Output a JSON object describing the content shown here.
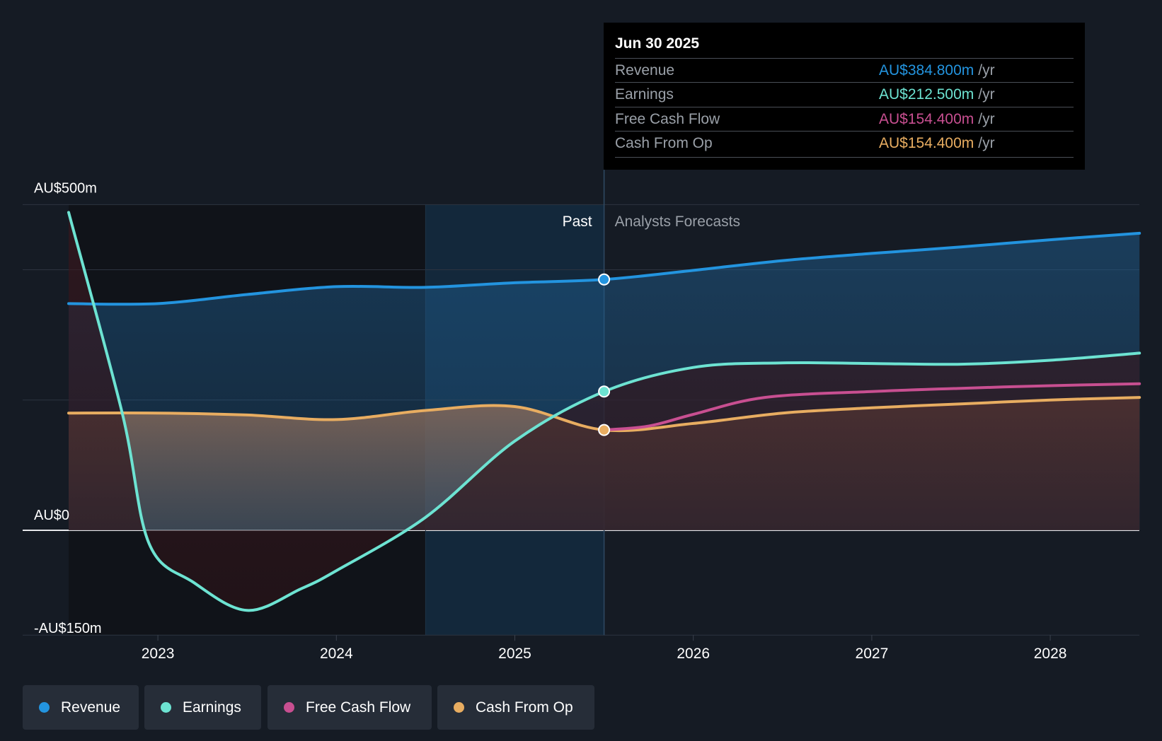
{
  "chart_data": {
    "type": "area",
    "currency": "AU$",
    "y_axis": {
      "min": -150,
      "max": 500,
      "unit": "m",
      "labels": [
        {
          "value": 500,
          "text": "AU$500m"
        },
        {
          "value": 0,
          "text": "AU$0"
        },
        {
          "value": -150,
          "text": "-AU$150m"
        }
      ],
      "gridlines": [
        500,
        400,
        200,
        0
      ]
    },
    "x_axis": {
      "min": 2022.5,
      "max": 2028.5,
      "ticks": [
        {
          "value": 2023,
          "text": "2023"
        },
        {
          "value": 2024,
          "text": "2024"
        },
        {
          "value": 2025,
          "text": "2025"
        },
        {
          "value": 2026,
          "text": "2026"
        },
        {
          "value": 2027,
          "text": "2027"
        },
        {
          "value": 2028,
          "text": "2028"
        }
      ]
    },
    "past_region": {
      "start": 2022.5,
      "highlight_start": 2024.5,
      "end": 2025.5,
      "label": "Past"
    },
    "forecast_label": "Analysts Forecasts",
    "series": [
      {
        "name": "Revenue",
        "color": "#2394df",
        "points": [
          [
            2022.5,
            348
          ],
          [
            2023.0,
            348
          ],
          [
            2023.5,
            362
          ],
          [
            2024.0,
            374
          ],
          [
            2024.5,
            373
          ],
          [
            2025.0,
            380
          ],
          [
            2025.5,
            385
          ],
          [
            2026.0,
            399
          ],
          [
            2026.5,
            414
          ],
          [
            2027.0,
            425
          ],
          [
            2027.5,
            435
          ],
          [
            2028.0,
            446
          ],
          [
            2028.5,
            456
          ]
        ]
      },
      {
        "name": "Earnings",
        "color": "#6de3d2",
        "points": [
          [
            2022.5,
            488
          ],
          [
            2022.8,
            180
          ],
          [
            2022.95,
            -20
          ],
          [
            2023.2,
            -80
          ],
          [
            2023.5,
            -123
          ],
          [
            2023.8,
            -90
          ],
          [
            2024.0,
            -62
          ],
          [
            2024.5,
            20
          ],
          [
            2025.0,
            137
          ],
          [
            2025.5,
            213
          ],
          [
            2026.0,
            250
          ],
          [
            2026.5,
            257
          ],
          [
            2027.0,
            256
          ],
          [
            2027.5,
            255
          ],
          [
            2028.0,
            261
          ],
          [
            2028.5,
            272
          ]
        ]
      },
      {
        "name": "Free Cash Flow",
        "color": "#c84f91",
        "points": [
          [
            2025.5,
            154
          ],
          [
            2025.75,
            160
          ],
          [
            2026.0,
            178
          ],
          [
            2026.4,
            204
          ],
          [
            2027.0,
            213
          ],
          [
            2027.5,
            218
          ],
          [
            2028.0,
            222
          ],
          [
            2028.5,
            225
          ]
        ]
      },
      {
        "name": "Cash From Op",
        "color": "#e8ad61",
        "points": [
          [
            2022.5,
            180
          ],
          [
            2023.0,
            180
          ],
          [
            2023.5,
            177
          ],
          [
            2024.0,
            170
          ],
          [
            2024.5,
            184
          ],
          [
            2025.0,
            190
          ],
          [
            2025.5,
            154
          ],
          [
            2026.0,
            164
          ],
          [
            2026.5,
            180
          ],
          [
            2027.0,
            188
          ],
          [
            2027.5,
            194
          ],
          [
            2028.0,
            200
          ],
          [
            2028.5,
            204
          ]
        ]
      }
    ],
    "highlight_date": 2025.5
  },
  "tooltip": {
    "date": "Jun 30 2025",
    "rows": [
      {
        "label": "Revenue",
        "value": "AU$384.800m",
        "unit": "/yr",
        "color": "#2394df"
      },
      {
        "label": "Earnings",
        "value": "AU$212.500m",
        "unit": "/yr",
        "color": "#6de3d2"
      },
      {
        "label": "Free Cash Flow",
        "value": "AU$154.400m",
        "unit": "/yr",
        "color": "#c84f91"
      },
      {
        "label": "Cash From Op",
        "value": "AU$154.400m",
        "unit": "/yr",
        "color": "#e8ad61"
      }
    ]
  },
  "legend": [
    {
      "label": "Revenue",
      "color": "#2394df"
    },
    {
      "label": "Earnings",
      "color": "#6de3d2"
    },
    {
      "label": "Free Cash Flow",
      "color": "#c84f91"
    },
    {
      "label": "Cash From Op",
      "color": "#e8ad61"
    }
  ]
}
